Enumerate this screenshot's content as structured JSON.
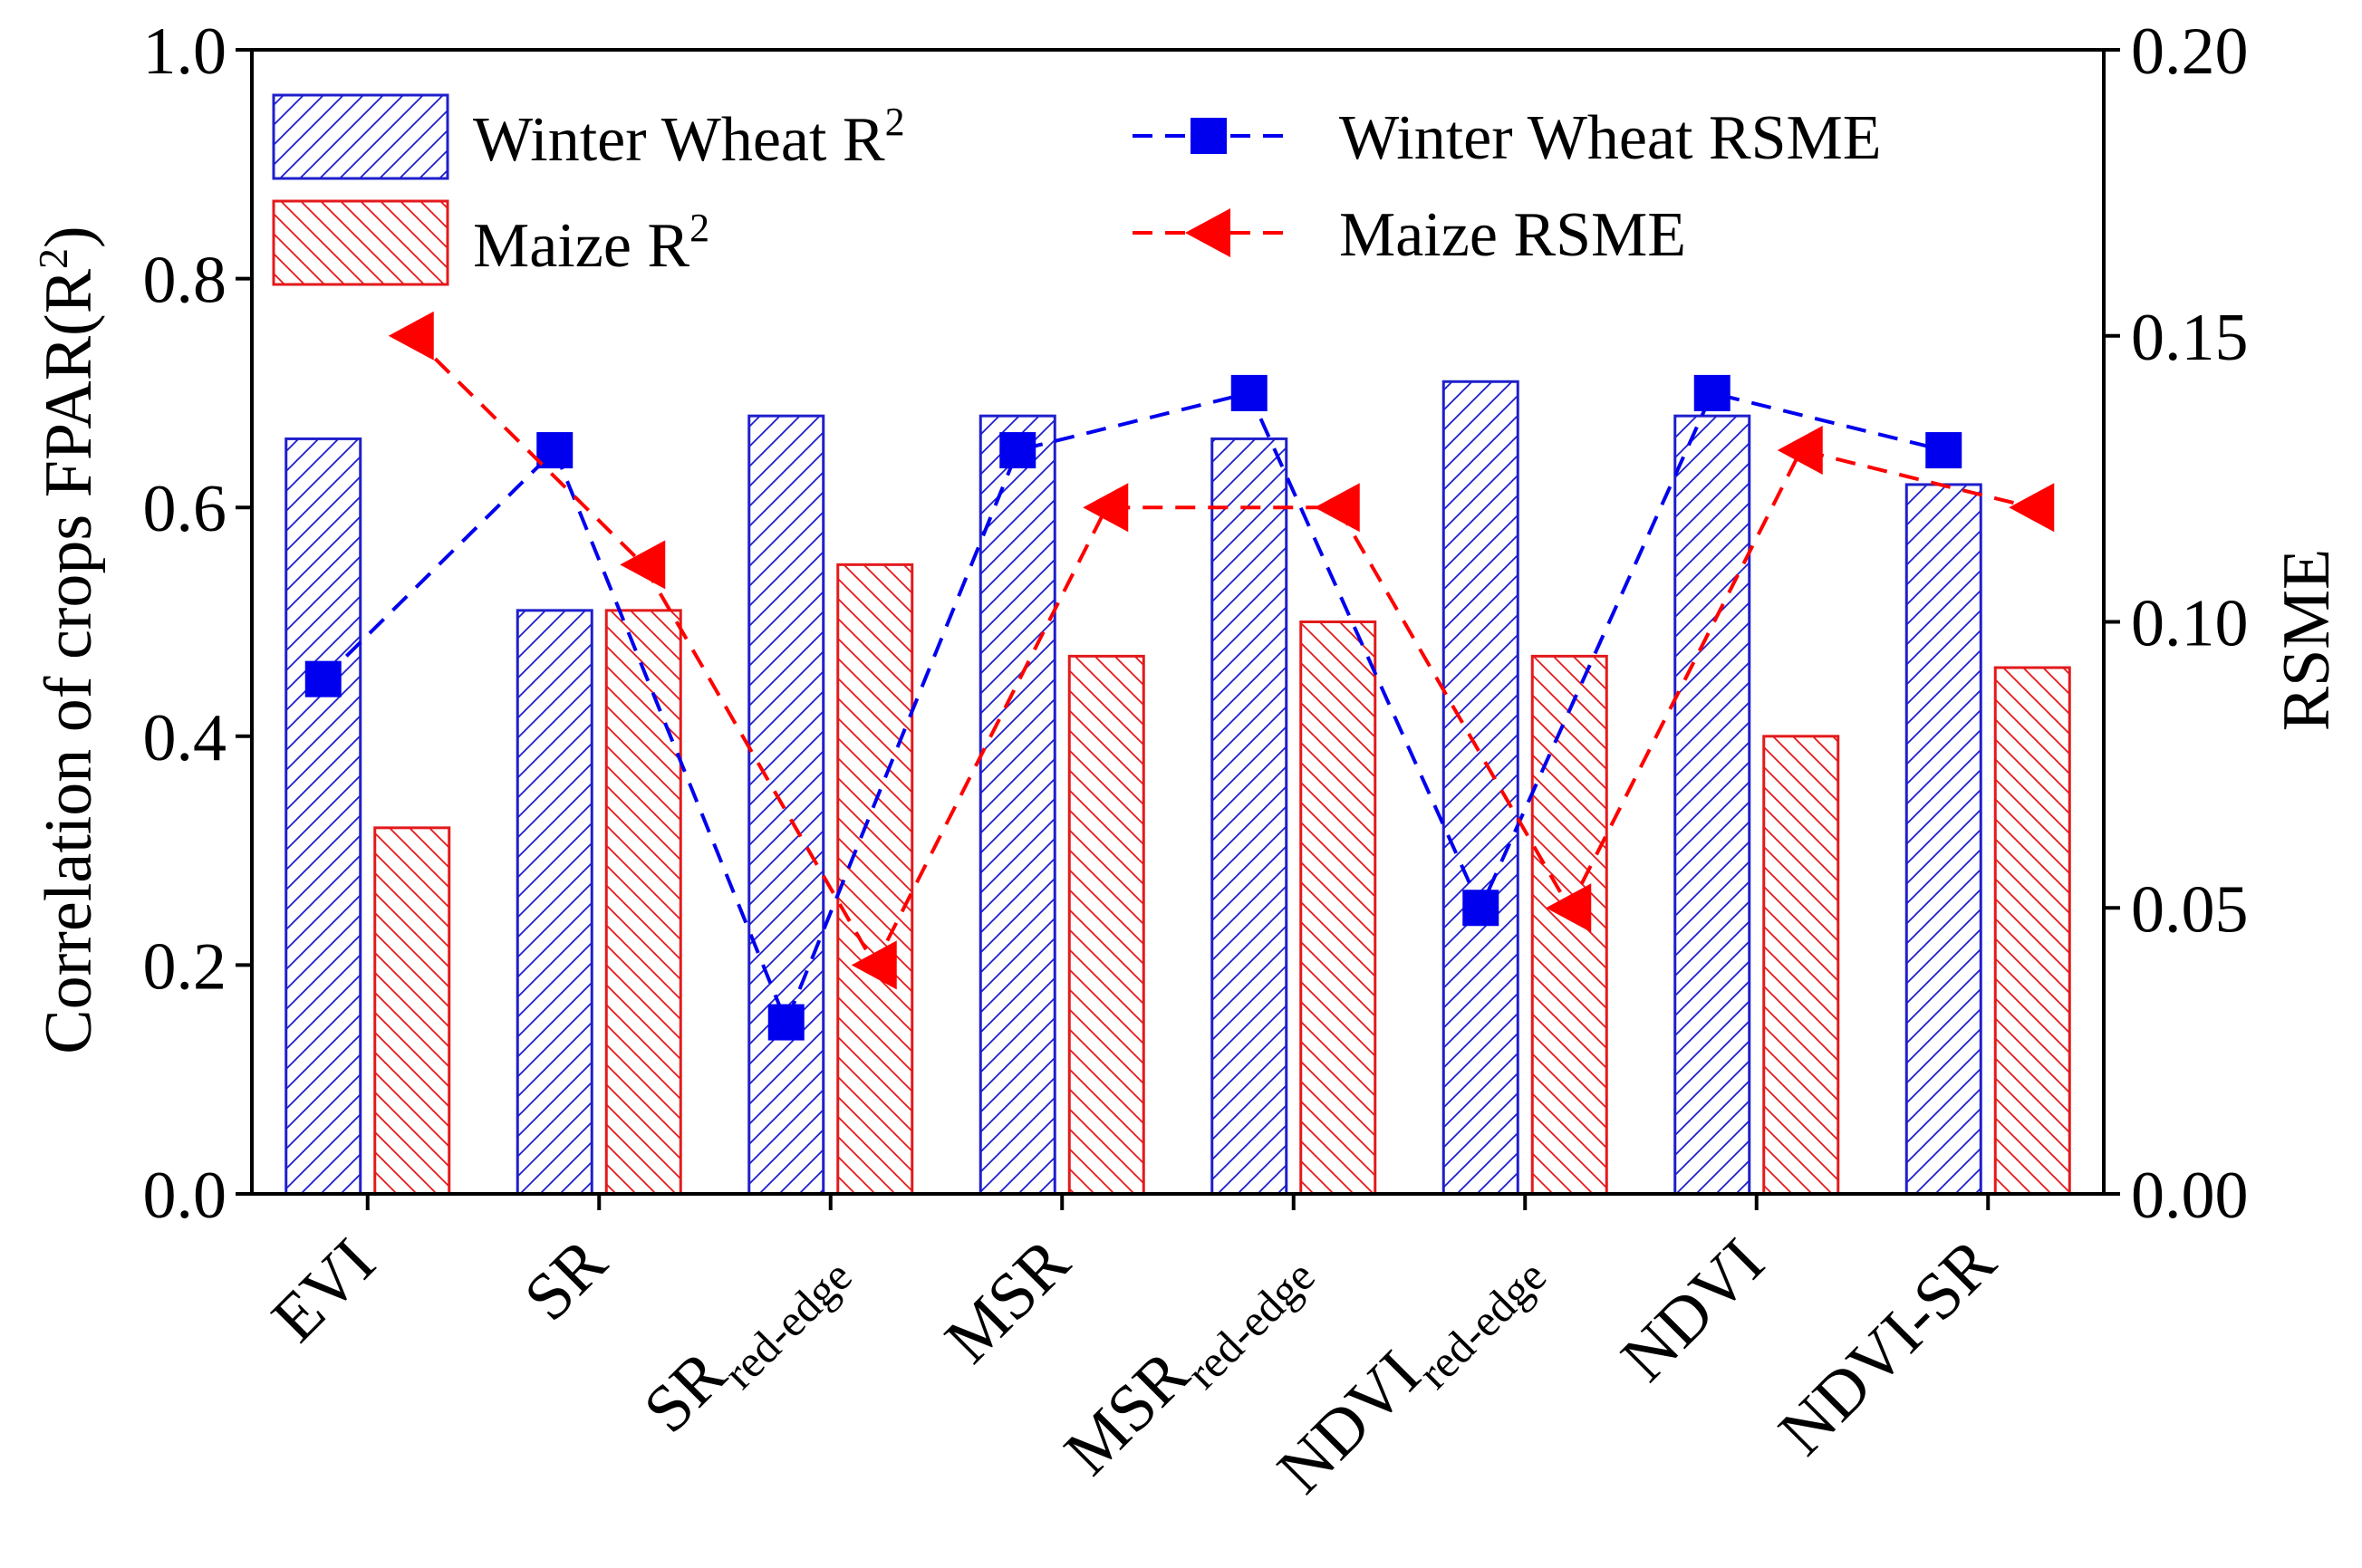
{
  "chart_data": {
    "type": "bar",
    "categories": [
      {
        "base": "EVI",
        "sub": ""
      },
      {
        "base": "SR",
        "sub": ""
      },
      {
        "base": "SR",
        "sub": "red-edge"
      },
      {
        "base": "MSR",
        "sub": ""
      },
      {
        "base": "MSR",
        "sub": "red-edge"
      },
      {
        "base": "NDVI",
        "sub": "red-edge"
      },
      {
        "base": "NDVI",
        "sub": ""
      },
      {
        "base": "NDVI-SR",
        "sub": ""
      }
    ],
    "series": [
      {
        "name": "Winter Wheat R",
        "sup": "2",
        "kind": "bar",
        "axis": "left",
        "color": "#1f1fcc",
        "pattern": "forward-hatch",
        "values": [
          0.66,
          0.51,
          0.68,
          0.68,
          0.66,
          0.71,
          0.68,
          0.62
        ]
      },
      {
        "name": "Maize R",
        "sup": "2",
        "kind": "bar",
        "axis": "left",
        "color": "#e31a1c",
        "pattern": "back-hatch",
        "values": [
          0.32,
          0.51,
          0.55,
          0.47,
          0.5,
          0.47,
          0.4,
          0.46
        ]
      },
      {
        "name": "Winter Wheat RSME",
        "sup": "",
        "kind": "line",
        "axis": "right",
        "color": "#0000ee",
        "marker": "square",
        "line": "dashed",
        "values": [
          0.09,
          0.13,
          0.03,
          0.13,
          0.14,
          0.05,
          0.14,
          0.13
        ]
      },
      {
        "name": "Maize RSME",
        "sup": "",
        "kind": "line",
        "axis": "right",
        "color": "#ff0000",
        "marker": "left-triangle",
        "line": "dashed",
        "values": [
          0.15,
          0.11,
          0.04,
          0.12,
          0.12,
          0.05,
          0.13,
          0.12
        ]
      }
    ],
    "ylabel_left": {
      "text": "Correlation of crops FPAR(R",
      "sup": "2",
      "tail": ")"
    },
    "ylabel_right": "RSME",
    "ylim_left": [
      0,
      1.0
    ],
    "ylim_right": [
      0,
      0.2
    ],
    "yticks_left": [
      "0.0",
      "0.2",
      "0.4",
      "0.6",
      "0.8",
      "1.0"
    ],
    "yticks_right": [
      "0.00",
      "0.05",
      "0.10",
      "0.15",
      "0.20"
    ],
    "legend_position": "top",
    "grid": false
  }
}
